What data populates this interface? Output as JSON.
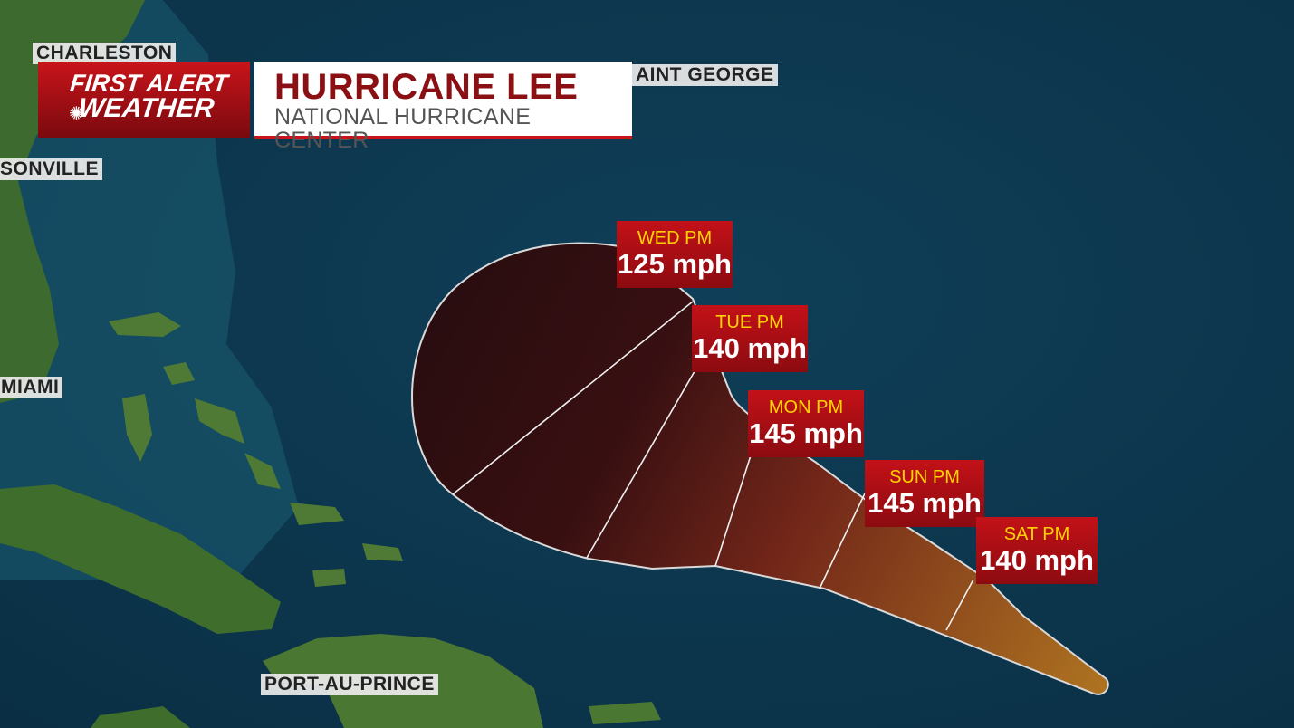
{
  "header": {
    "logo_line1": "FIRST ALERT",
    "logo_line2": "WEATHER",
    "title": "HURRICANE LEE",
    "subtitle": "NATIONAL HURRICANE CENTER"
  },
  "cities": {
    "charleston": "CHARLESTON",
    "saint_george": "AINT GEORGE",
    "jacksonville": "SONVILLE",
    "miami": "MIAMI",
    "port_au_prince": "PORT-AU-PRINCE"
  },
  "forecast": [
    {
      "day": "WED PM",
      "wind": "125 mph"
    },
    {
      "day": "TUE PM",
      "wind": "140 mph"
    },
    {
      "day": "MON PM",
      "wind": "145 mph"
    },
    {
      "day": "SUN PM",
      "wind": "145 mph"
    },
    {
      "day": "SAT PM",
      "wind": "140 mph"
    }
  ],
  "colors": {
    "ocean": "#0d3a52",
    "land": "#3d6b2f",
    "cone_dark": "#2e0a0c",
    "cone_mid": "#7a1d12",
    "cone_light": "#c0701a",
    "label_bg": "#c31118",
    "label_day": "#ffd400",
    "title_red": "#8b1014"
  }
}
